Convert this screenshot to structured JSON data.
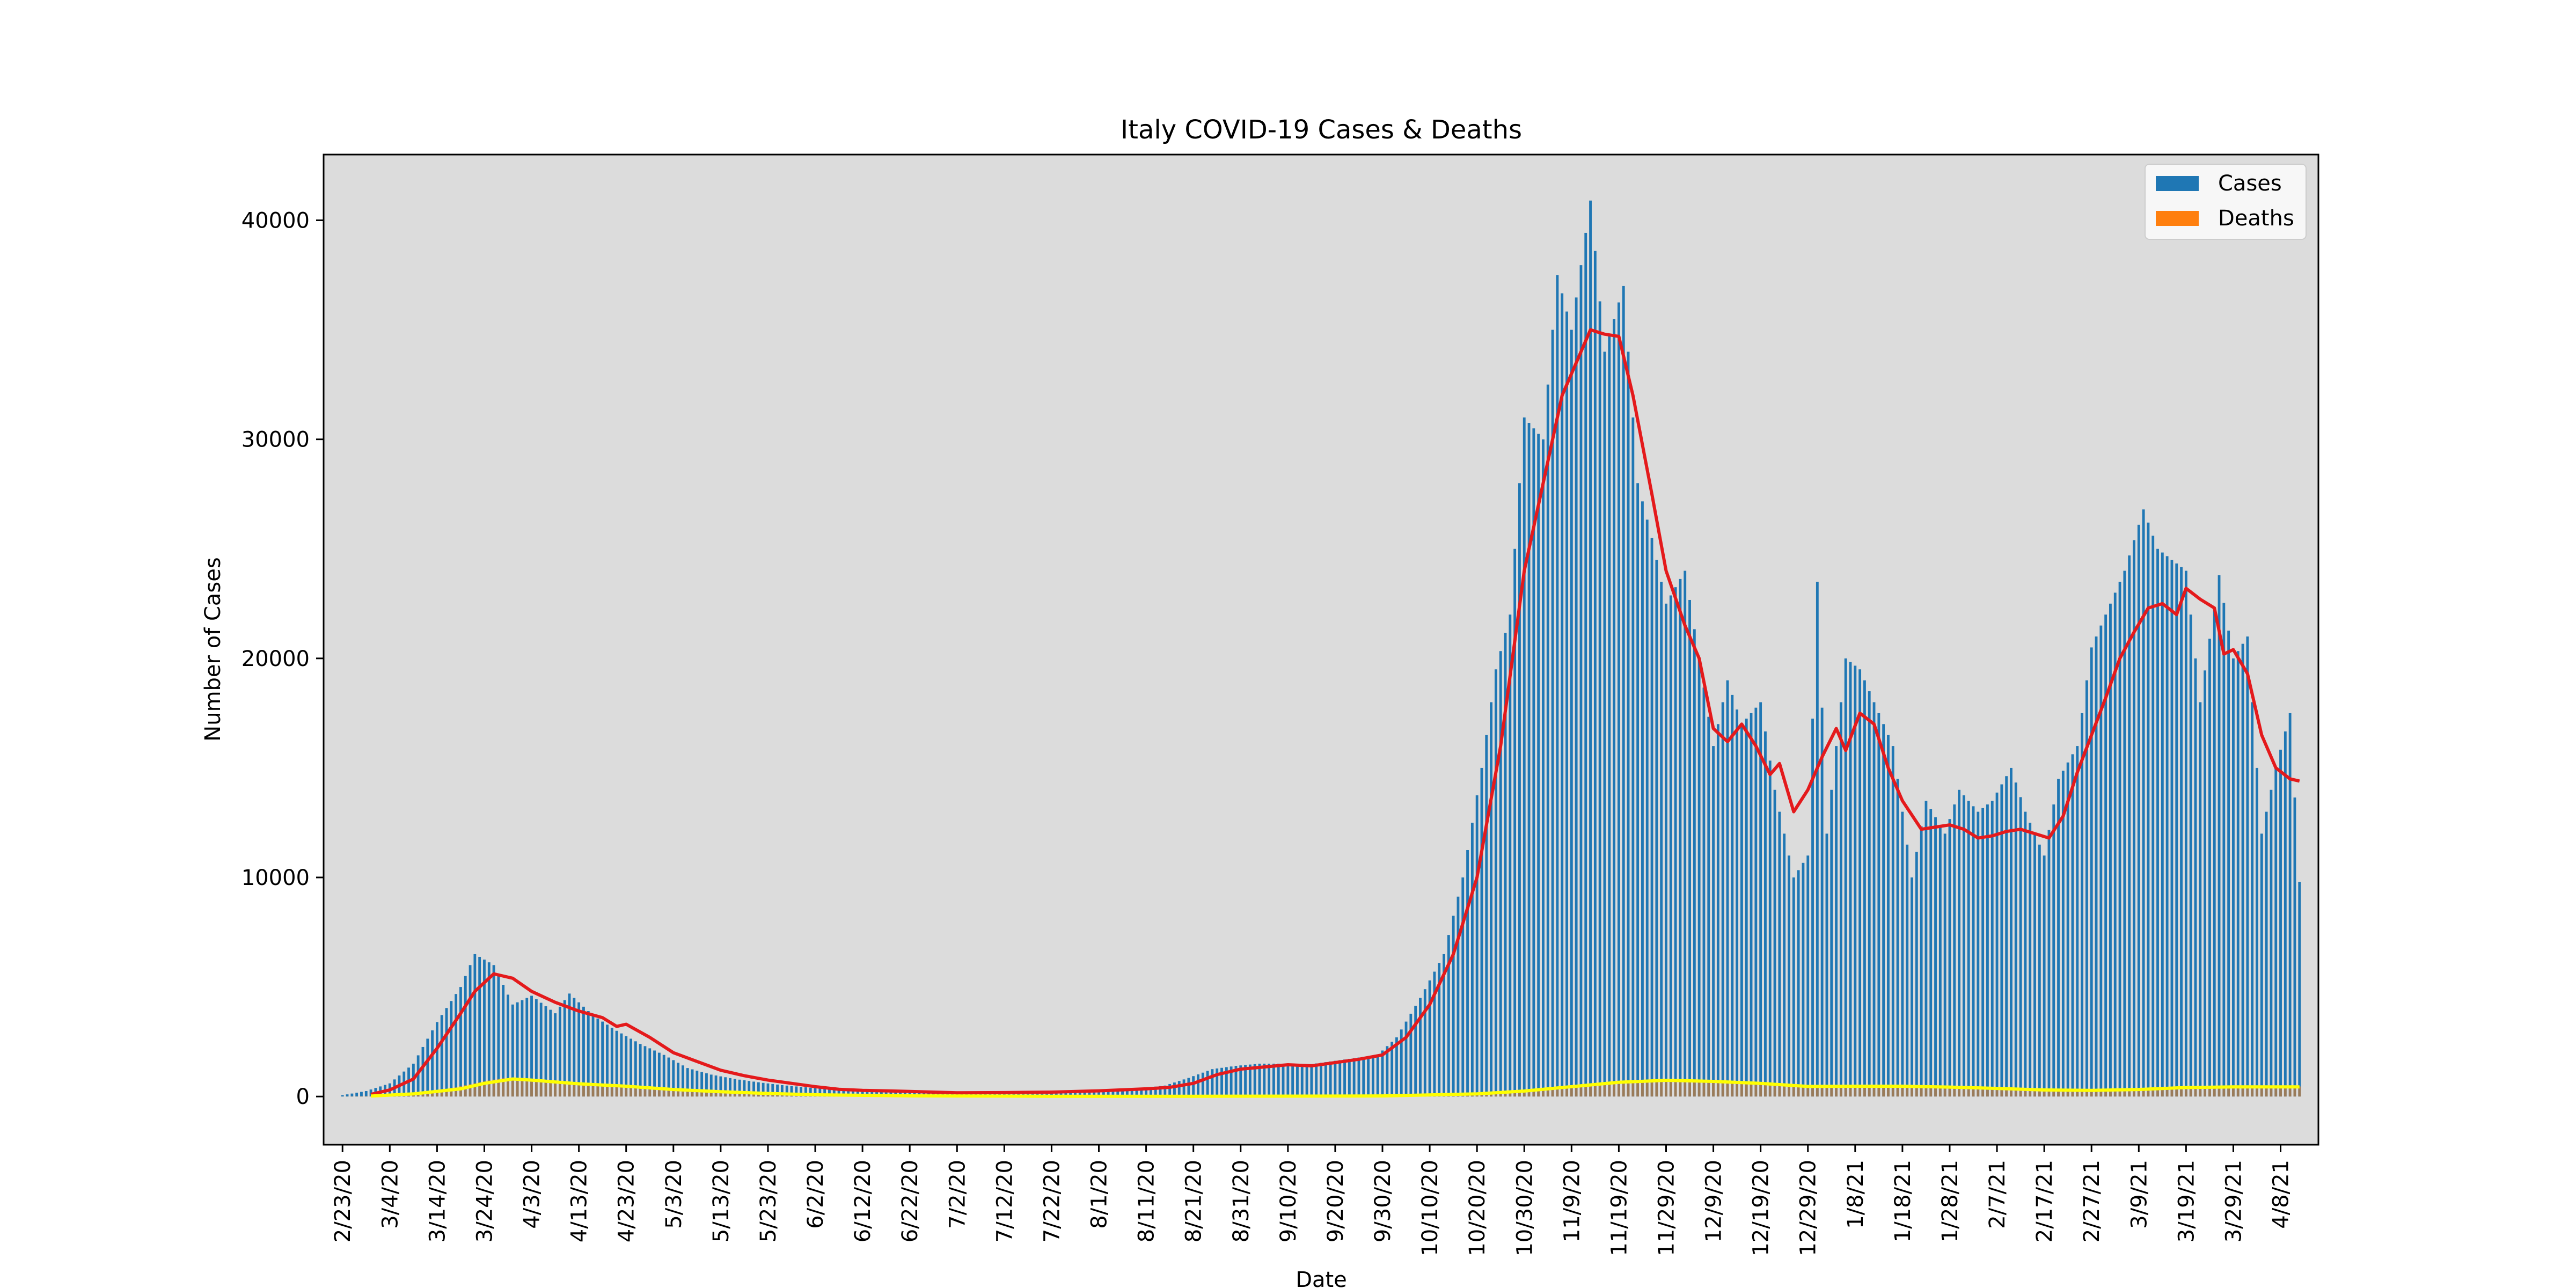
{
  "chart_data": {
    "type": "bar",
    "title": "Italy COVID-19 Cases & Deaths",
    "xlabel": "Date",
    "ylabel": "Number of Cases",
    "x_range": [
      "2/23/20",
      "4/12/21"
    ],
    "ylim": [
      -2200,
      43000
    ],
    "y_ticks": [
      0,
      10000,
      20000,
      30000,
      40000
    ],
    "x_tick_labels": [
      "2/23/20",
      "3/4/20",
      "3/14/20",
      "3/24/20",
      "4/3/20",
      "4/13/20",
      "4/23/20",
      "5/3/20",
      "5/13/20",
      "5/23/20",
      "6/2/20",
      "6/12/20",
      "6/22/20",
      "7/2/20",
      "7/12/20",
      "7/22/20",
      "8/1/20",
      "8/11/20",
      "8/21/20",
      "8/31/20",
      "9/10/20",
      "9/20/20",
      "9/30/20",
      "10/10/20",
      "10/20/20",
      "10/30/20",
      "11/9/20",
      "11/19/20",
      "11/29/20",
      "12/9/20",
      "12/19/20",
      "12/29/20",
      "1/8/21",
      "1/18/21",
      "1/28/21",
      "2/7/21",
      "2/17/21",
      "2/27/21",
      "3/9/21",
      "3/19/21",
      "3/29/21",
      "4/8/21"
    ],
    "grid": false,
    "legend_position": "top-right",
    "plot_background": "#dcdcdc",
    "series": [
      {
        "name": "Cases",
        "kind": "bar",
        "color": "#1f77b4",
        "points": [
          [
            "2/23/20",
            60
          ],
          [
            "2/28/20",
            250
          ],
          [
            "3/4/20",
            600
          ],
          [
            "3/9/20",
            1500
          ],
          [
            "3/14/20",
            3400
          ],
          [
            "3/19/20",
            5000
          ],
          [
            "3/22/20",
            6500
          ],
          [
            "3/26/20",
            6000
          ],
          [
            "3/30/20",
            4200
          ],
          [
            "4/3/20",
            4600
          ],
          [
            "4/8/20",
            3800
          ],
          [
            "4/11/20",
            4700
          ],
          [
            "4/16/20",
            3700
          ],
          [
            "4/21/20",
            3000
          ],
          [
            "4/26/20",
            2400
          ],
          [
            "5/1/20",
            1900
          ],
          [
            "5/6/20",
            1300
          ],
          [
            "5/11/20",
            1000
          ],
          [
            "5/16/20",
            800
          ],
          [
            "5/21/20",
            650
          ],
          [
            "5/26/20",
            520
          ],
          [
            "6/1/20",
            400
          ],
          [
            "6/6/20",
            300
          ],
          [
            "6/11/20",
            280
          ],
          [
            "6/16/20",
            260
          ],
          [
            "6/21/20",
            230
          ],
          [
            "6/26/20",
            200
          ],
          [
            "7/1/20",
            180
          ],
          [
            "7/11/20",
            190
          ],
          [
            "7/21/20",
            230
          ],
          [
            "7/31/20",
            290
          ],
          [
            "8/10/20",
            380
          ],
          [
            "8/15/20",
            500
          ],
          [
            "8/20/20",
            850
          ],
          [
            "8/25/20",
            1250
          ],
          [
            "8/30/20",
            1400
          ],
          [
            "9/4/20",
            1500
          ],
          [
            "9/9/20",
            1500
          ],
          [
            "9/14/20",
            1450
          ],
          [
            "9/19/20",
            1600
          ],
          [
            "9/24/20",
            1750
          ],
          [
            "9/29/20",
            1900
          ],
          [
            "10/3/20",
            2700
          ],
          [
            "10/8/20",
            4500
          ],
          [
            "10/13/20",
            6500
          ],
          [
            "10/17/20",
            10000
          ],
          [
            "10/21/20",
            15000
          ],
          [
            "10/24/20",
            19500
          ],
          [
            "10/27/20",
            22000
          ],
          [
            "10/30/20",
            31000
          ],
          [
            "11/3/20",
            30000
          ],
          [
            "11/6/20",
            37500
          ],
          [
            "11/9/20",
            35000
          ],
          [
            "11/13/20",
            40900
          ],
          [
            "11/16/20",
            34000
          ],
          [
            "11/20/20",
            37000
          ],
          [
            "11/23/20",
            28000
          ],
          [
            "11/26/20",
            25500
          ],
          [
            "11/29/20",
            22500
          ],
          [
            "12/3/20",
            24000
          ],
          [
            "12/6/20",
            20000
          ],
          [
            "12/9/20",
            16000
          ],
          [
            "12/12/20",
            19000
          ],
          [
            "12/15/20",
            17000
          ],
          [
            "12/19/20",
            18000
          ],
          [
            "12/22/20",
            14000
          ],
          [
            "12/26/20",
            10000
          ],
          [
            "12/29/20",
            11000
          ],
          [
            "12/31/20",
            23500
          ],
          [
            "1/2/21",
            12000
          ],
          [
            "1/6/21",
            20000
          ],
          [
            "1/9/21",
            19500
          ],
          [
            "1/13/21",
            17500
          ],
          [
            "1/16/21",
            16000
          ],
          [
            "1/20/21",
            10000
          ],
          [
            "1/23/21",
            13500
          ],
          [
            "1/27/21",
            12000
          ],
          [
            "1/30/21",
            14000
          ],
          [
            "2/3/21",
            13000
          ],
          [
            "2/6/21",
            13500
          ],
          [
            "2/10/21",
            15000
          ],
          [
            "2/13/21",
            13000
          ],
          [
            "2/17/21",
            11000
          ],
          [
            "2/20/21",
            14500
          ],
          [
            "2/24/21",
            16000
          ],
          [
            "2/27/21",
            20500
          ],
          [
            "3/3/21",
            22500
          ],
          [
            "3/6/21",
            24000
          ],
          [
            "3/10/21",
            26800
          ],
          [
            "3/13/21",
            25000
          ],
          [
            "3/16/21",
            24500
          ],
          [
            "3/19/21",
            24000
          ],
          [
            "3/22/21",
            18000
          ],
          [
            "3/26/21",
            23800
          ],
          [
            "3/29/21",
            20000
          ],
          [
            "4/1/21",
            21000
          ],
          [
            "4/4/21",
            12000
          ],
          [
            "4/7/21",
            15000
          ],
          [
            "4/10/21",
            17500
          ],
          [
            "4/12/21",
            9800
          ]
        ]
      },
      {
        "name": "Deaths",
        "kind": "bar",
        "color": "#ff7f0e",
        "points": [
          [
            "2/23/20",
            2
          ],
          [
            "3/4/20",
            40
          ],
          [
            "3/14/20",
            250
          ],
          [
            "3/24/20",
            700
          ],
          [
            "3/28/20",
            850
          ],
          [
            "4/3/20",
            750
          ],
          [
            "4/13/20",
            600
          ],
          [
            "4/23/20",
            480
          ],
          [
            "5/3/20",
            300
          ],
          [
            "5/13/20",
            200
          ],
          [
            "5/23/20",
            120
          ],
          [
            "6/2/20",
            70
          ],
          [
            "6/22/20",
            30
          ],
          [
            "7/12/20",
            15
          ],
          [
            "8/1/20",
            10
          ],
          [
            "8/21/20",
            10
          ],
          [
            "9/10/20",
            15
          ],
          [
            "9/30/20",
            25
          ],
          [
            "10/20/20",
            150
          ],
          [
            "10/30/20",
            280
          ],
          [
            "11/9/20",
            450
          ],
          [
            "11/19/20",
            700
          ],
          [
            "11/29/20",
            750
          ],
          [
            "12/9/20",
            700
          ],
          [
            "12/19/20",
            650
          ],
          [
            "12/29/20",
            450
          ],
          [
            "1/8/21",
            470
          ],
          [
            "1/18/21",
            480
          ],
          [
            "1/28/21",
            430
          ],
          [
            "2/7/21",
            380
          ],
          [
            "2/17/21",
            320
          ],
          [
            "2/27/21",
            280
          ],
          [
            "3/9/21",
            320
          ],
          [
            "3/19/21",
            420
          ],
          [
            "3/29/21",
            450
          ],
          [
            "4/12/21",
            460
          ]
        ]
      },
      {
        "kind": "line",
        "color": "#e41a1c",
        "points": [
          [
            "2/29/20",
            100
          ],
          [
            "3/4/20",
            300
          ],
          [
            "3/9/20",
            800
          ],
          [
            "3/14/20",
            2200
          ],
          [
            "3/19/20",
            3800
          ],
          [
            "3/22/20",
            4800
          ],
          [
            "3/26/20",
            5600
          ],
          [
            "3/30/20",
            5400
          ],
          [
            "4/3/20",
            4800
          ],
          [
            "4/8/20",
            4300
          ],
          [
            "4/13/20",
            3900
          ],
          [
            "4/18/20",
            3600
          ],
          [
            "4/21/20",
            3200
          ],
          [
            "4/23/20",
            3300
          ],
          [
            "4/28/20",
            2700
          ],
          [
            "5/3/20",
            2000
          ],
          [
            "5/8/20",
            1600
          ],
          [
            "5/13/20",
            1200
          ],
          [
            "5/18/20",
            950
          ],
          [
            "5/23/20",
            750
          ],
          [
            "5/28/20",
            600
          ],
          [
            "6/2/20",
            450
          ],
          [
            "6/7/20",
            330
          ],
          [
            "6/12/20",
            280
          ],
          [
            "6/17/20",
            260
          ],
          [
            "6/22/20",
            230
          ],
          [
            "6/27/20",
            200
          ],
          [
            "7/2/20",
            170
          ],
          [
            "7/12/20",
            180
          ],
          [
            "7/22/20",
            200
          ],
          [
            "8/1/20",
            260
          ],
          [
            "8/11/20",
            350
          ],
          [
            "8/16/20",
            420
          ],
          [
            "8/21/20",
            600
          ],
          [
            "8/26/20",
            1000
          ],
          [
            "8/31/20",
            1250
          ],
          [
            "9/5/20",
            1350
          ],
          [
            "9/10/20",
            1450
          ],
          [
            "9/15/20",
            1400
          ],
          [
            "9/20/20",
            1550
          ],
          [
            "9/25/20",
            1700
          ],
          [
            "9/30/20",
            1900
          ],
          [
            "10/5/20",
            2700
          ],
          [
            "10/10/20",
            4200
          ],
          [
            "10/15/20",
            6500
          ],
          [
            "10/20/20",
            10000
          ],
          [
            "10/25/20",
            16000
          ],
          [
            "10/30/20",
            24000
          ],
          [
            "11/4/20",
            29000
          ],
          [
            "11/7/20",
            32000
          ],
          [
            "11/10/20",
            33500
          ],
          [
            "11/13/20",
            35000
          ],
          [
            "11/16/20",
            34800
          ],
          [
            "11/19/20",
            34700
          ],
          [
            "11/22/20",
            32000
          ],
          [
            "11/26/20",
            27500
          ],
          [
            "11/29/20",
            24000
          ],
          [
            "12/3/20",
            21500
          ],
          [
            "12/6/20",
            20000
          ],
          [
            "12/9/20",
            16800
          ],
          [
            "12/12/20",
            16200
          ],
          [
            "12/15/20",
            17000
          ],
          [
            "12/18/20",
            16000
          ],
          [
            "12/21/20",
            14700
          ],
          [
            "12/23/20",
            15200
          ],
          [
            "12/26/20",
            13000
          ],
          [
            "12/29/20",
            14000
          ],
          [
            "1/1/21",
            15500
          ],
          [
            "1/4/21",
            16800
          ],
          [
            "1/6/21",
            15800
          ],
          [
            "1/9/21",
            17500
          ],
          [
            "1/12/21",
            17000
          ],
          [
            "1/15/21",
            15000
          ],
          [
            "1/18/21",
            13500
          ],
          [
            "1/22/21",
            12200
          ],
          [
            "1/25/21",
            12300
          ],
          [
            "1/28/21",
            12400
          ],
          [
            "1/31/21",
            12200
          ],
          [
            "2/3/21",
            11800
          ],
          [
            "2/6/21",
            11900
          ],
          [
            "2/9/21",
            12100
          ],
          [
            "2/12/21",
            12200
          ],
          [
            "2/15/21",
            12000
          ],
          [
            "2/18/21",
            11800
          ],
          [
            "2/21/21",
            12800
          ],
          [
            "2/24/21",
            14800
          ],
          [
            "2/27/21",
            16500
          ],
          [
            "3/2/21",
            18200
          ],
          [
            "3/5/21",
            20000
          ],
          [
            "3/8/21",
            21200
          ],
          [
            "3/11/21",
            22300
          ],
          [
            "3/14/21",
            22500
          ],
          [
            "3/17/21",
            22000
          ],
          [
            "3/19/21",
            23200
          ],
          [
            "3/22/21",
            22700
          ],
          [
            "3/25/21",
            22300
          ],
          [
            "3/27/21",
            20200
          ],
          [
            "3/29/21",
            20400
          ],
          [
            "4/1/21",
            19300
          ],
          [
            "4/4/21",
            16500
          ],
          [
            "4/7/21",
            15000
          ],
          [
            "4/10/21",
            14500
          ],
          [
            "4/12/21",
            14400
          ]
        ]
      },
      {
        "kind": "line",
        "color": "#ffff00",
        "points": [
          [
            "2/29/20",
            20
          ],
          [
            "3/9/20",
            120
          ],
          [
            "3/19/20",
            350
          ],
          [
            "3/24/20",
            600
          ],
          [
            "3/30/20",
            800
          ],
          [
            "4/3/20",
            750
          ],
          [
            "4/13/20",
            580
          ],
          [
            "4/23/20",
            470
          ],
          [
            "5/3/20",
            320
          ],
          [
            "5/13/20",
            220
          ],
          [
            "5/23/20",
            140
          ],
          [
            "6/2/20",
            80
          ],
          [
            "6/22/20",
            30
          ],
          [
            "7/22/20",
            12
          ],
          [
            "8/21/20",
            10
          ],
          [
            "9/30/20",
            25
          ],
          [
            "10/20/20",
            120
          ],
          [
            "10/30/20",
            250
          ],
          [
            "11/9/20",
            450
          ],
          [
            "11/19/20",
            650
          ],
          [
            "11/29/20",
            740
          ],
          [
            "12/9/20",
            690
          ],
          [
            "12/19/20",
            600
          ],
          [
            "12/29/20",
            460
          ],
          [
            "1/8/21",
            470
          ],
          [
            "1/18/21",
            470
          ],
          [
            "1/28/21",
            430
          ],
          [
            "2/7/21",
            370
          ],
          [
            "2/17/21",
            300
          ],
          [
            "2/27/21",
            280
          ],
          [
            "3/9/21",
            320
          ],
          [
            "3/19/21",
            410
          ],
          [
            "3/29/21",
            440
          ],
          [
            "4/12/21",
            440
          ]
        ]
      }
    ]
  }
}
